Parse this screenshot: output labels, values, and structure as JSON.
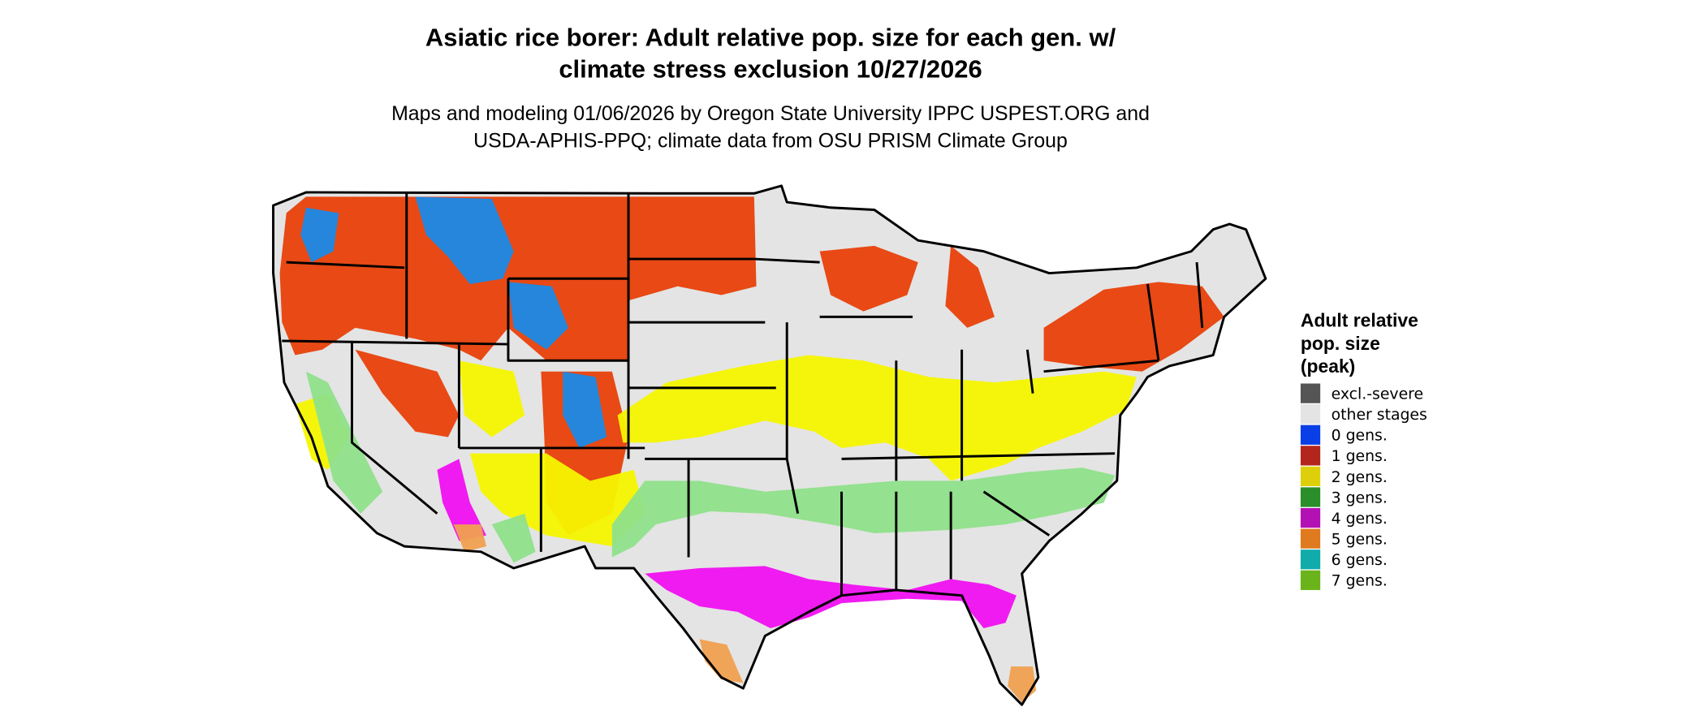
{
  "title": [
    "Asiatic rice borer: Adult relative pop. size for each gen. w/",
    "climate stress exclusion 10/27/2026"
  ],
  "subtitle": [
    "Maps and modeling 01/06/2026 by Oregon State University IPPC USPEST.ORG and",
    "USDA-APHIS-PPQ; climate data from OSU PRISM Climate Group"
  ],
  "legend": {
    "title": [
      "Adult relative",
      "pop. size",
      "(peak)"
    ],
    "items": [
      {
        "label": "excl.-severe",
        "color": "#555555"
      },
      {
        "label": "other stages",
        "color": "#e4e4e4"
      },
      {
        "label": "0 gens.",
        "color": "#0a3ee6"
      },
      {
        "label": "1 gens.",
        "color": "#b3261e"
      },
      {
        "label": "2 gens.",
        "color": "#ddd00a"
      },
      {
        "label": "3 gens.",
        "color": "#2a8f2a"
      },
      {
        "label": "4 gens.",
        "color": "#b411b4"
      },
      {
        "label": "5 gens.",
        "color": "#e07a1f"
      },
      {
        "label": "6 gens.",
        "color": "#12abab"
      },
      {
        "label": "7 gens.",
        "color": "#6bb31a"
      }
    ]
  },
  "map_colors": {
    "red": "#e8400a",
    "yellow": "#f5f500",
    "green": "#8fe08a",
    "magenta": "#f010f0",
    "orange": "#f0a050",
    "blue": "#1a8ae6"
  }
}
